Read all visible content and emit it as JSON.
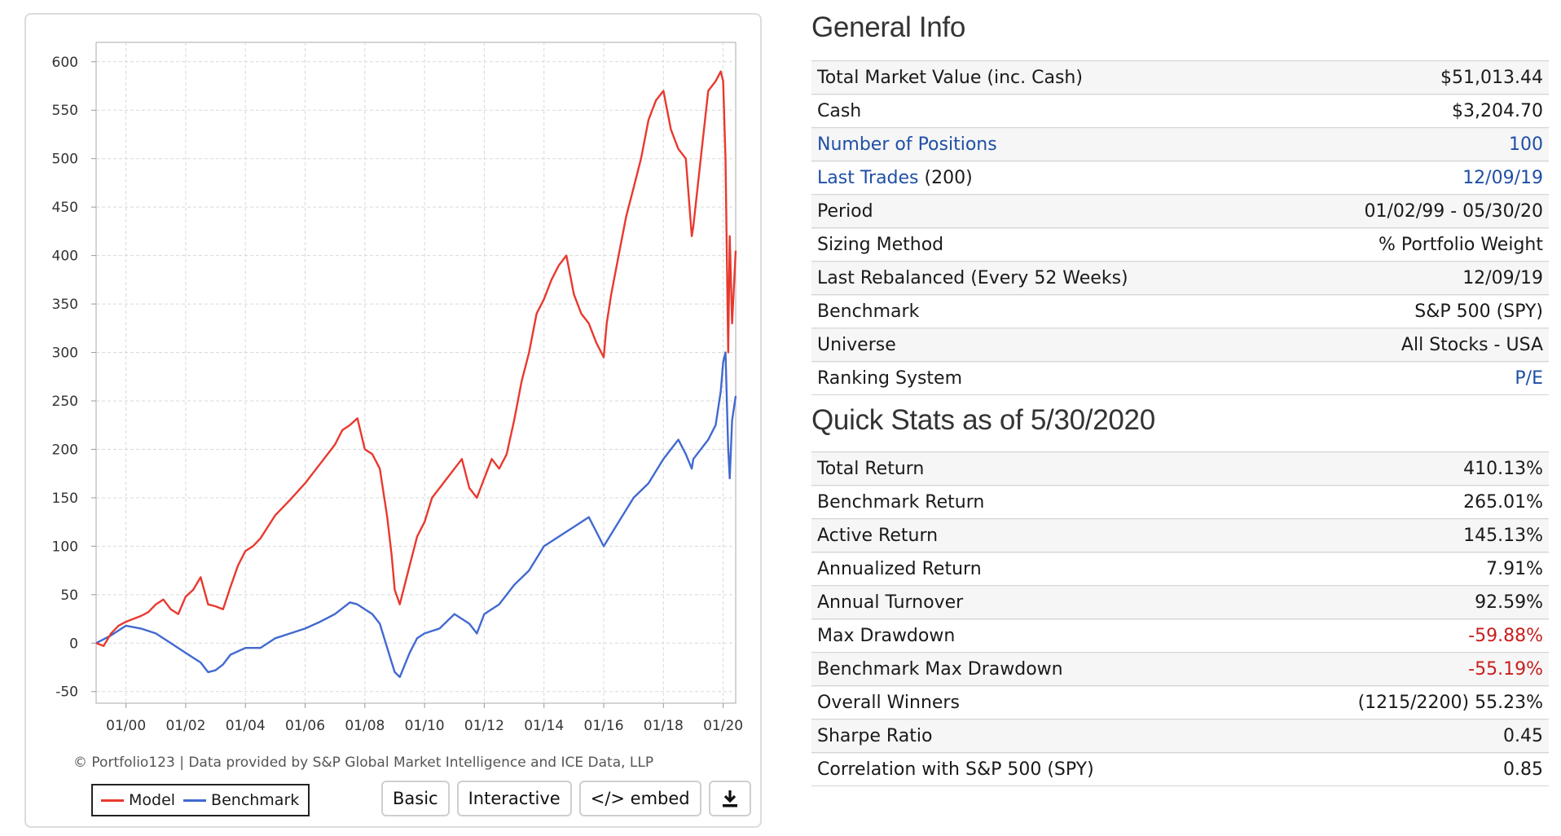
{
  "chart": {
    "attribution": "© Portfolio123 | Data provided by S&P Global Market Intelligence and ICE Data, LLP",
    "legend": {
      "model": "Model",
      "benchmark": "Benchmark"
    },
    "buttons": {
      "basic": "Basic",
      "interactive": "Interactive",
      "embed": "</> embed"
    },
    "download_icon": "download-icon"
  },
  "chart_data": {
    "type": "line",
    "title": "",
    "xlabel": "",
    "ylabel": "",
    "x_tick_labels": [
      "01/00",
      "01/02",
      "01/04",
      "01/06",
      "01/08",
      "01/10",
      "01/12",
      "01/14",
      "01/16",
      "01/18",
      "01/20"
    ],
    "y_ticks": [
      -50,
      0,
      50,
      100,
      150,
      200,
      250,
      300,
      350,
      400,
      450,
      500,
      550,
      600
    ],
    "xlim": [
      "01/99",
      "05/20"
    ],
    "ylim": [
      -62,
      620
    ],
    "grid": true,
    "legend_position": "bottom-left",
    "colors": {
      "model": "#e8392f",
      "benchmark": "#4169d0"
    },
    "series": [
      {
        "name": "Model",
        "x": [
          1999.0,
          1999.25,
          1999.5,
          1999.75,
          2000.0,
          2000.25,
          2000.5,
          2000.75,
          2001.0,
          2001.25,
          2001.5,
          2001.75,
          2002.0,
          2002.25,
          2002.5,
          2002.75,
          2003.0,
          2003.25,
          2003.5,
          2003.75,
          2004.0,
          2004.25,
          2004.5,
          2004.75,
          2005.0,
          2005.5,
          2006.0,
          2006.25,
          2006.5,
          2007.0,
          2007.25,
          2007.5,
          2007.75,
          2008.0,
          2008.25,
          2008.5,
          2008.75,
          2008.9,
          2009.0,
          2009.17,
          2009.5,
          2009.75,
          2010.0,
          2010.25,
          2010.5,
          2010.75,
          2011.0,
          2011.25,
          2011.5,
          2011.75,
          2012.0,
          2012.25,
          2012.5,
          2012.75,
          2013.0,
          2013.25,
          2013.5,
          2013.75,
          2014.0,
          2014.25,
          2014.5,
          2014.75,
          2015.0,
          2015.25,
          2015.5,
          2015.75,
          2016.0,
          2016.1,
          2016.25,
          2016.5,
          2016.75,
          2017.0,
          2017.25,
          2017.5,
          2017.75,
          2018.0,
          2018.25,
          2018.5,
          2018.75,
          2018.95,
          2019.0,
          2019.25,
          2019.5,
          2019.75,
          2019.92,
          2020.0,
          2020.08,
          2020.17,
          2020.22,
          2020.3,
          2020.42
        ],
        "y": [
          0,
          -3,
          10,
          18,
          22,
          25,
          28,
          32,
          40,
          45,
          35,
          30,
          48,
          55,
          68,
          40,
          38,
          35,
          58,
          80,
          95,
          100,
          108,
          120,
          132,
          148,
          165,
          175,
          185,
          205,
          220,
          225,
          232,
          200,
          195,
          180,
          130,
          90,
          55,
          40,
          80,
          110,
          125,
          150,
          160,
          170,
          180,
          190,
          160,
          150,
          170,
          190,
          180,
          195,
          230,
          270,
          300,
          340,
          355,
          375,
          390,
          400,
          360,
          340,
          330,
          310,
          295,
          330,
          360,
          400,
          440,
          470,
          500,
          540,
          560,
          570,
          530,
          510,
          500,
          420,
          430,
          500,
          570,
          580,
          590,
          580,
          500,
          300,
          420,
          330,
          405
        ]
      },
      {
        "name": "Benchmark",
        "x": [
          1999.0,
          1999.5,
          2000.0,
          2000.5,
          2001.0,
          2001.5,
          2002.0,
          2002.5,
          2002.75,
          2003.0,
          2003.25,
          2003.5,
          2004.0,
          2004.5,
          2005.0,
          2005.5,
          2006.0,
          2006.5,
          2007.0,
          2007.5,
          2007.75,
          2008.0,
          2008.25,
          2008.5,
          2008.75,
          2008.9,
          2009.0,
          2009.17,
          2009.5,
          2009.75,
          2010.0,
          2010.5,
          2011.0,
          2011.5,
          2011.75,
          2012.0,
          2012.5,
          2013.0,
          2013.5,
          2014.0,
          2014.5,
          2015.0,
          2015.5,
          2015.75,
          2016.0,
          2016.1,
          2016.5,
          2017.0,
          2017.5,
          2018.0,
          2018.25,
          2018.5,
          2018.75,
          2018.95,
          2019.0,
          2019.5,
          2019.75,
          2019.92,
          2020.0,
          2020.08,
          2020.17,
          2020.22,
          2020.3,
          2020.42
        ],
        "y": [
          0,
          8,
          18,
          15,
          10,
          0,
          -10,
          -20,
          -30,
          -28,
          -22,
          -12,
          -5,
          -5,
          5,
          10,
          15,
          22,
          30,
          42,
          40,
          35,
          30,
          20,
          -5,
          -20,
          -30,
          -35,
          -10,
          5,
          10,
          15,
          30,
          20,
          10,
          30,
          40,
          60,
          75,
          100,
          110,
          120,
          130,
          115,
          100,
          105,
          125,
          150,
          165,
          190,
          200,
          210,
          195,
          180,
          190,
          210,
          225,
          260,
          290,
          300,
          200,
          170,
          230,
          255
        ]
      }
    ]
  },
  "general_info": {
    "title": "General Info",
    "rows": [
      {
        "label": "Total Market Value (inc. Cash)",
        "value": "$51,013.44"
      },
      {
        "label": "Cash",
        "value": "$3,204.70"
      },
      {
        "label": "Number of Positions",
        "value": "100"
      },
      {
        "label": "Last Trades",
        "label_suffix": " (200)",
        "value": "12/09/19"
      },
      {
        "label": "Period",
        "value": "01/02/99 - 05/30/20"
      },
      {
        "label": "Sizing Method",
        "value": "% Portfolio Weight"
      },
      {
        "label": "Last Rebalanced (Every 52 Weeks)",
        "value": "12/09/19"
      },
      {
        "label": "Benchmark",
        "value": "S&P 500 (SPY)"
      },
      {
        "label": "Universe",
        "value": "All Stocks - USA"
      },
      {
        "label": "Ranking System",
        "value": "P/E"
      }
    ]
  },
  "quick_stats": {
    "title": "Quick Stats as of 5/30/2020",
    "rows": [
      {
        "label": "Total Return",
        "value": "410.13%"
      },
      {
        "label": "Benchmark Return",
        "value": "265.01%"
      },
      {
        "label": "Active Return",
        "value": "145.13%"
      },
      {
        "label": "Annualized Return",
        "value": "7.91%"
      },
      {
        "label": "Annual Turnover",
        "value": "92.59%"
      },
      {
        "label": "Max Drawdown",
        "value": "-59.88%"
      },
      {
        "label": "Benchmark Max Drawdown",
        "value": "-55.19%"
      },
      {
        "label": "Overall Winners",
        "value": "(1215/2200) 55.23%"
      },
      {
        "label": "Sharpe Ratio",
        "value": "0.45"
      },
      {
        "label": "Correlation with S&P 500 (SPY)",
        "value": "0.85"
      }
    ]
  }
}
